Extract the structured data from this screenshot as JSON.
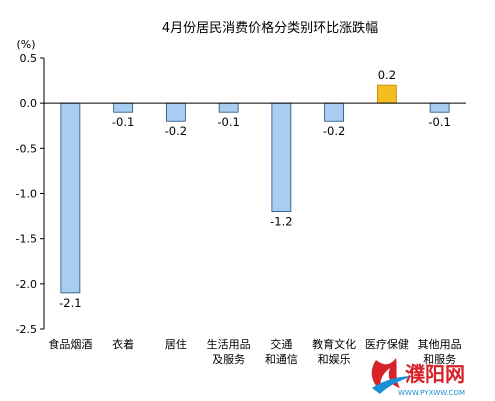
{
  "chart_data": {
    "type": "bar",
    "title": "4月份居民消费价格分类别环比涨跌幅",
    "ylabel": "(%)",
    "ylim": [
      -2.5,
      0.5
    ],
    "yticks": [
      0.5,
      0.0,
      -0.5,
      -1.0,
      -1.5,
      -2.0,
      -2.5
    ],
    "ytick_labels": [
      "0.5",
      "0.0",
      "-0.5",
      "-1.0",
      "-1.5",
      "-2.0",
      "-2.5"
    ],
    "categories": [
      [
        "食品烟酒"
      ],
      [
        "衣着"
      ],
      [
        "居住"
      ],
      [
        "生活用品",
        "及服务"
      ],
      [
        "交通",
        "和通信"
      ],
      [
        "教育文化",
        "和娱乐"
      ],
      [
        "医疗保健"
      ],
      [
        "其他用品",
        "和服务"
      ]
    ],
    "values": [
      -2.1,
      -0.1,
      -0.2,
      -0.1,
      -1.2,
      -0.2,
      0.2,
      -0.1
    ],
    "data_labels": [
      "-2.1",
      "-0.1",
      "-0.2",
      "-0.1",
      "-1.2",
      "-0.2",
      "0.2",
      "-0.1"
    ],
    "colors": {
      "negative_fill": "#a9cdf0",
      "negative_stroke": "#1f4e79",
      "positive_fill": "#f5bd1f",
      "positive_stroke": "#b8860b",
      "axis": "#000000"
    },
    "grid": false,
    "legend": "none"
  },
  "watermark": {
    "text": "濮阳网",
    "url": "WWW.PYXWW.COM",
    "colors": {
      "text": "#d8222a",
      "accent": "#1a8fd6",
      "url": "#1a8fd6"
    }
  }
}
